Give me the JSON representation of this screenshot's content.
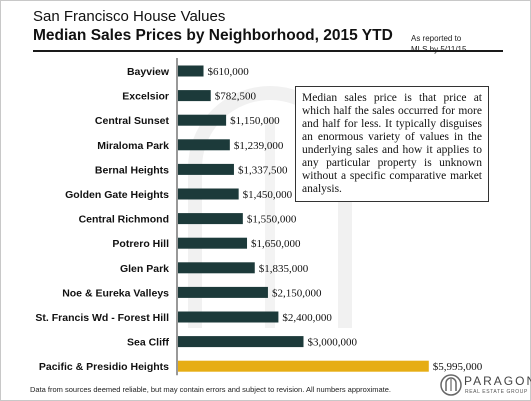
{
  "header": {
    "title": "San Francisco House Values",
    "subtitle": "Median Sales Prices by Neighborhood, 2015 YTD",
    "reported_line1": "As reported to",
    "reported_line2": "MLS by 5/11/15."
  },
  "note": "Median sales price is that price at which half the sales occurred for more and half for less. It typically disguises an enormous variety of values in the underlying sales and how it applies to any particular property is unknown without a specific comparative market analysis.",
  "footer": "Data from sources deemed reliable, but may contain errors and subject to revision. All numbers approximate.",
  "logo": {
    "name": "PARAGON",
    "tagline": "REAL ESTATE GROUP"
  },
  "colors": {
    "bar": "#1c3a3a",
    "highlight": "#e6ad14"
  },
  "chart_data": {
    "type": "bar",
    "orientation": "horizontal",
    "title": "Median Sales Prices by Neighborhood, 2015 YTD",
    "xlabel": "",
    "ylabel": "",
    "xlim": [
      0,
      6000000
    ],
    "grid": false,
    "categories": [
      "Bayview",
      "Excelsior",
      "Central Sunset",
      "Miraloma Park",
      "Bernal Heights",
      "Golden Gate Heights",
      "Central Richmond",
      "Potrero Hill",
      "Glen Park",
      "Noe & Eureka Valleys",
      "St. Francis Wd - Forest Hill",
      "Sea Cliff",
      "Pacific & Presidio Heights"
    ],
    "values": [
      610000,
      782500,
      1150000,
      1239000,
      1337500,
      1450000,
      1550000,
      1650000,
      1835000,
      2150000,
      2400000,
      3000000,
      5995000
    ],
    "value_labels": [
      "$610,000",
      "$782,500",
      "$1,150,000",
      "$1,239,000",
      "$1,337,500",
      "$1,450,000",
      "$1,550,000",
      "$1,650,000",
      "$1,835,000",
      "$2,150,000",
      "$2,400,000",
      "$3,000,000",
      "$5,995,000"
    ],
    "highlight_index": 12
  }
}
